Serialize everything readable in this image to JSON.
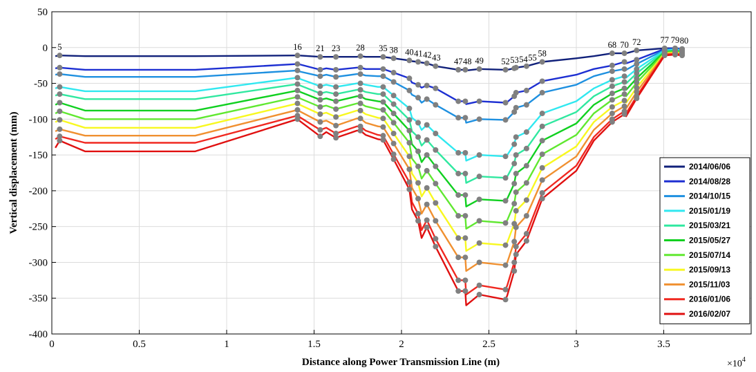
{
  "chart_data": {
    "type": "line",
    "xlabel": "Distance along Power Transmission Line (m)",
    "ylabel": "Vertical displacement (mm)",
    "x_multiplier_label": "×10",
    "x_multiplier_exponent": "4",
    "xlim": [
      0,
      40000
    ],
    "ylim": [
      -400,
      50
    ],
    "x_tick_labels": [
      "0",
      "0.5",
      "1",
      "1.5",
      "2",
      "2.5",
      "3",
      "3.5"
    ],
    "y_tick_labels": [
      "50",
      "0",
      "-50",
      "-100",
      "-150",
      "-200",
      "-250",
      "-300",
      "-350",
      "-400"
    ],
    "grid": true,
    "legend_position": "bottom-right",
    "marker_color": "#808080",
    "towers": [
      {
        "label": "5",
        "x": 450
      },
      {
        "label": "16",
        "x": 14050
      },
      {
        "label": "21",
        "x": 15350
      },
      {
        "label": "23",
        "x": 16250
      },
      {
        "label": "28",
        "x": 17650
      },
      {
        "label": "35",
        "x": 18950
      },
      {
        "label": "38",
        "x": 19550
      },
      {
        "label": "40",
        "x": 20450
      },
      {
        "label": "41",
        "x": 20950
      },
      {
        "label": "42",
        "x": 21450
      },
      {
        "label": "43",
        "x": 21950
      },
      {
        "label": "47",
        "x": 23250
      },
      {
        "label": "48",
        "x": 23650
      },
      {
        "label": "49",
        "x": 24450
      },
      {
        "label": "52",
        "x": 25950
      },
      {
        "label": "53",
        "x": 26450
      },
      {
        "label": "54",
        "x": 26550
      },
      {
        "label": "55",
        "x": 27150
      },
      {
        "label": "58",
        "x": 28050
      },
      {
        "label": "68",
        "x": 32050
      },
      {
        "label": "70",
        "x": 32750
      },
      {
        "label": "72",
        "x": 33450
      },
      {
        "label": "77",
        "x": 35050
      },
      {
        "label": "79",
        "x": 35650
      },
      {
        "label": "80",
        "x": 36050
      }
    ],
    "x": [
      200,
      450,
      1900,
      8200,
      14050,
      14100,
      15350,
      15700,
      16250,
      17450,
      17650,
      17950,
      18650,
      18950,
      19550,
      20450,
      20600,
      20950,
      21150,
      21450,
      21950,
      23250,
      23650,
      23700,
      24450,
      25950,
      26050,
      26450,
      26550,
      27150,
      28050,
      30000,
      31000,
      32050,
      32750,
      32850,
      33450,
      35050,
      35650,
      36050
    ],
    "series": [
      {
        "name": "2014/06/06",
        "color": "#10207a",
        "values": [
          -12,
          -11,
          -12,
          -12,
          -11,
          -11,
          -13,
          -13,
          -13,
          -13,
          -12,
          -13,
          -13,
          -13,
          -15,
          -18,
          -19,
          -20,
          -21,
          -22,
          -26,
          -31,
          -31,
          -32,
          -30,
          -31,
          -31,
          -29,
          -28,
          -26,
          -20,
          -15,
          -12,
          -8,
          -8,
          -8,
          -4,
          -1,
          -1,
          -2
        ]
      },
      {
        "name": "2014/08/28",
        "color": "#1d2fd2",
        "values": [
          -29,
          -28,
          -31,
          -31,
          -23,
          -23,
          -31,
          -29,
          -31,
          -28,
          -28,
          -30,
          -30,
          -30,
          -35,
          -43,
          -49,
          -52,
          -56,
          -53,
          -57,
          -75,
          -75,
          -79,
          -75,
          -77,
          -76,
          -68,
          -63,
          -60,
          -47,
          -38,
          -30,
          -25,
          -20,
          -22,
          -17,
          -2,
          -1,
          -2
        ]
      },
      {
        "name": "2014/10/15",
        "color": "#1e90e0",
        "values": [
          -38,
          -37,
          -41,
          -41,
          -32,
          -33,
          -40,
          -38,
          -41,
          -37,
          -37,
          -39,
          -40,
          -40,
          -48,
          -60,
          -66,
          -70,
          -77,
          -72,
          -80,
          -98,
          -98,
          -105,
          -100,
          -101,
          -100,
          -90,
          -84,
          -80,
          -63,
          -52,
          -40,
          -33,
          -30,
          -31,
          -23,
          -3,
          -2,
          -3
        ]
      },
      {
        "name": "2015/01/19",
        "color": "#30e8f0",
        "values": [
          -57,
          -55,
          -61,
          -61,
          -42,
          -43,
          -54,
          -52,
          -55,
          -50,
          -50,
          -52,
          -55,
          -55,
          -67,
          -85,
          -98,
          -105,
          -115,
          -108,
          -120,
          -147,
          -147,
          -158,
          -150,
          -152,
          -150,
          -135,
          -125,
          -118,
          -92,
          -75,
          -57,
          -45,
          -40,
          -42,
          -30,
          -4,
          -3,
          -4
        ]
      },
      {
        "name": "2015/03/21",
        "color": "#30e8a0",
        "values": [
          -67,
          -65,
          -72,
          -72,
          -51,
          -52,
          -64,
          -62,
          -65,
          -59,
          -59,
          -62,
          -65,
          -65,
          -79,
          -101,
          -117,
          -125,
          -137,
          -129,
          -143,
          -176,
          -176,
          -189,
          -180,
          -182,
          -180,
          -162,
          -150,
          -141,
          -110,
          -90,
          -68,
          -54,
          -48,
          -50,
          -36,
          -5,
          -4,
          -5
        ]
      },
      {
        "name": "2015/05/27",
        "color": "#10d020",
        "values": [
          -80,
          -77,
          -88,
          -88,
          -60,
          -61,
          -73,
          -71,
          -75,
          -68,
          -68,
          -72,
          -75,
          -76,
          -92,
          -116,
          -135,
          -145,
          -160,
          -150,
          -166,
          -206,
          -206,
          -222,
          -212,
          -214,
          -211,
          -190,
          -176,
          -165,
          -130,
          -106,
          -80,
          -64,
          -57,
          -59,
          -43,
          -6,
          -5,
          -6
        ]
      },
      {
        "name": "2015/07/14",
        "color": "#60e830",
        "values": [
          -92,
          -89,
          -100,
          -100,
          -69,
          -70,
          -83,
          -81,
          -86,
          -78,
          -78,
          -82,
          -86,
          -87,
          -105,
          -133,
          -155,
          -166,
          -183,
          -172,
          -190,
          -235,
          -235,
          -253,
          -242,
          -245,
          -241,
          -218,
          -202,
          -189,
          -149,
          -122,
          -92,
          -73,
          -65,
          -68,
          -49,
          -7,
          -6,
          -7
        ]
      },
      {
        "name": "2015/09/13",
        "color": "#f8f820",
        "values": [
          -104,
          -101,
          -112,
          -112,
          -78,
          -79,
          -93,
          -91,
          -97,
          -88,
          -88,
          -93,
          -98,
          -99,
          -120,
          -152,
          -176,
          -189,
          -208,
          -196,
          -217,
          -266,
          -266,
          -284,
          -273,
          -276,
          -272,
          -246,
          -228,
          -213,
          -168,
          -138,
          -104,
          -83,
          -74,
          -77,
          -56,
          -8,
          -7,
          -8
        ]
      },
      {
        "name": "2015/11/03",
        "color": "#f09030",
        "values": [
          -117,
          -114,
          -123,
          -123,
          -87,
          -88,
          -104,
          -102,
          -109,
          -99,
          -99,
          -105,
          -110,
          -111,
          -134,
          -170,
          -196,
          -211,
          -232,
          -219,
          -242,
          -293,
          -293,
          -312,
          -300,
          -304,
          -300,
          -271,
          -251,
          -235,
          -185,
          -152,
          -115,
          -92,
          -82,
          -85,
          -62,
          -9,
          -8,
          -9
        ]
      },
      {
        "name": "2016/01/06",
        "color": "#f02820",
        "values": [
          -128,
          -124,
          -133,
          -133,
          -95,
          -96,
          -115,
          -112,
          -120,
          -110,
          -110,
          -116,
          -122,
          -123,
          -149,
          -188,
          -216,
          -232,
          -255,
          -241,
          -267,
          -325,
          -325,
          -345,
          -332,
          -338,
          -332,
          -300,
          -278,
          -260,
          -203,
          -165,
          -125,
          -100,
          -89,
          -92,
          -68,
          -10,
          -9,
          -10
        ]
      },
      {
        "name": "2016/02/07",
        "color": "#e01010",
        "values": [
          -140,
          -130,
          -145,
          -145,
          -100,
          -101,
          -124,
          -118,
          -126,
          -116,
          -116,
          -122,
          -128,
          -129,
          -156,
          -198,
          -226,
          -242,
          -266,
          -251,
          -278,
          -340,
          -340,
          -360,
          -345,
          -352,
          -346,
          -312,
          -289,
          -270,
          -211,
          -172,
          -130,
          -104,
          -93,
          -96,
          -71,
          -11,
          -10,
          -11
        ]
      }
    ]
  }
}
